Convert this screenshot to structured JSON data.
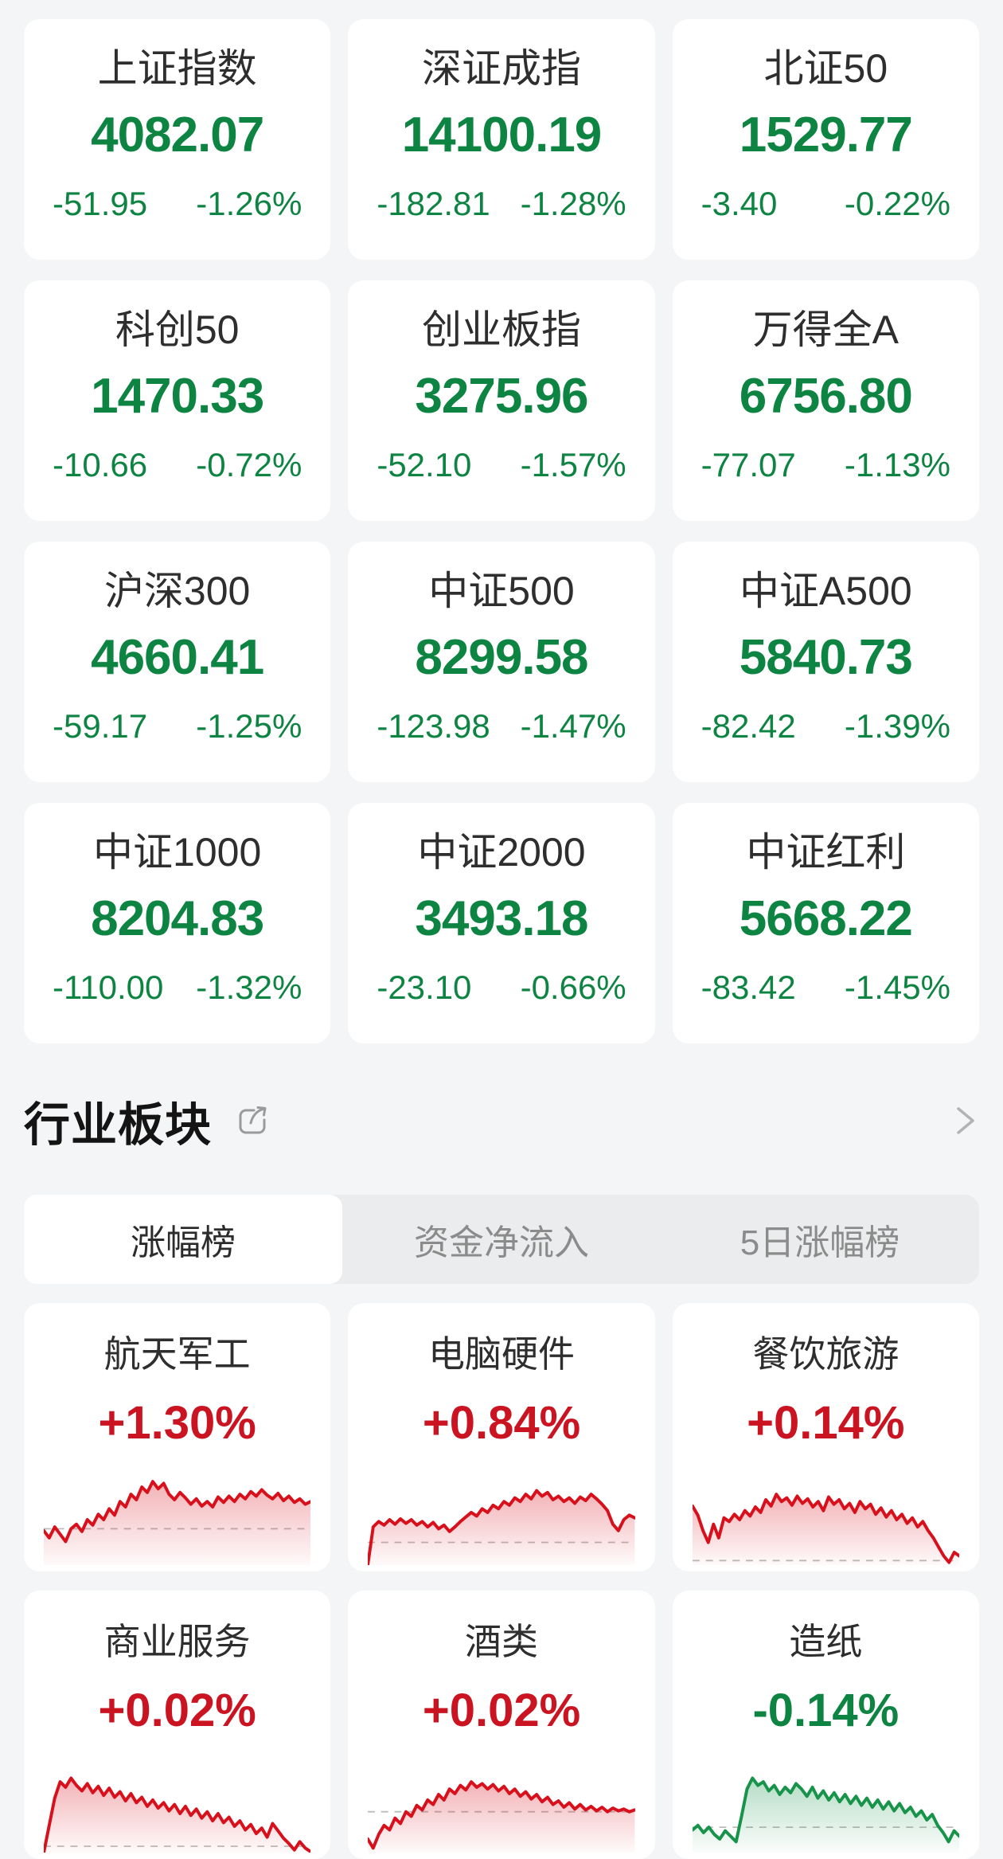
{
  "colors": {
    "page_bg": "#f4f5f6",
    "card_bg": "#ffffff",
    "text_green": "#0e8443",
    "text_red": "#cb1421",
    "chart_red": "#d8101c",
    "chart_green": "#18944a",
    "baseline_gray": "#bcbcbc",
    "tab_bg": "#ebeced",
    "tab_inactive": "#8b8b8b"
  },
  "icons": {
    "share": "share-icon",
    "chevron_right": "chevron-right-icon"
  },
  "index_cards": [
    {
      "name": "上证指数",
      "value": "4082.07",
      "change": "-51.95",
      "change_pct": "-1.26%"
    },
    {
      "name": "深证成指",
      "value": "14100.19",
      "change": "-182.81",
      "change_pct": "-1.28%"
    },
    {
      "name": "北证50",
      "value": "1529.77",
      "change": "-3.40",
      "change_pct": "-0.22%"
    },
    {
      "name": "科创50",
      "value": "1470.33",
      "change": "-10.66",
      "change_pct": "-0.72%"
    },
    {
      "name": "创业板指",
      "value": "3275.96",
      "change": "-52.10",
      "change_pct": "-1.57%"
    },
    {
      "name": "万得全A",
      "value": "6756.80",
      "change": "-77.07",
      "change_pct": "-1.13%"
    },
    {
      "name": "沪深300",
      "value": "4660.41",
      "change": "-59.17",
      "change_pct": "-1.25%"
    },
    {
      "name": "中证500",
      "value": "8299.58",
      "change": "-123.98",
      "change_pct": "-1.47%"
    },
    {
      "name": "中证A500",
      "value": "5840.73",
      "change": "-82.42",
      "change_pct": "-1.39%"
    },
    {
      "name": "中证1000",
      "value": "8204.83",
      "change": "-110.00",
      "change_pct": "-1.32%"
    },
    {
      "name": "中证2000",
      "value": "3493.18",
      "change": "-23.10",
      "change_pct": "-0.66%"
    },
    {
      "name": "中证红利",
      "value": "5668.22",
      "change": "-83.42",
      "change_pct": "-1.45%"
    }
  ],
  "sector_section": {
    "title": "行业板块",
    "tabs": [
      {
        "label": "涨幅榜",
        "active": true
      },
      {
        "label": "资金净流入",
        "active": false
      },
      {
        "label": "5日涨幅榜",
        "active": false
      }
    ],
    "sectors": [
      {
        "name": "航天军工",
        "change": "+1.30%",
        "direction": "up",
        "baseline": 60,
        "points": [
          62,
          70,
          58,
          66,
          74,
          60,
          55,
          63,
          50,
          56,
          44,
          50,
          38,
          45,
          30,
          36,
          22,
          28,
          14,
          20,
          8,
          16,
          10,
          22,
          28,
          20,
          26,
          33,
          27,
          35,
          30,
          36,
          25,
          31,
          24,
          30,
          22,
          27,
          19,
          24,
          17,
          23,
          27,
          21,
          29,
          24,
          31,
          27,
          33,
          30
        ]
      },
      {
        "name": "电脑硬件",
        "change": "+0.84%",
        "direction": "up",
        "baseline": 75,
        "points": [
          100,
          58,
          52,
          56,
          50,
          55,
          49,
          54,
          50,
          56,
          52,
          58,
          53,
          60,
          56,
          63,
          58,
          52,
          47,
          42,
          46,
          38,
          42,
          34,
          38,
          30,
          34,
          26,
          30,
          22,
          27,
          18,
          24,
          20,
          28,
          24,
          30,
          26,
          32,
          25,
          29,
          22,
          27,
          33,
          40,
          55,
          62,
          50,
          45,
          48
        ]
      },
      {
        "name": "餐饮旅游",
        "change": "+0.14%",
        "direction": "up",
        "baseline": 95,
        "points": [
          35,
          45,
          62,
          75,
          55,
          70,
          48,
          52,
          44,
          50,
          40,
          46,
          36,
          42,
          28,
          35,
          22,
          30,
          26,
          34,
          24,
          32,
          27,
          36,
          30,
          40,
          25,
          33,
          28,
          38,
          32,
          42,
          30,
          38,
          33,
          44,
          37,
          47,
          40,
          50,
          44,
          54,
          48,
          58,
          52,
          62,
          70,
          80,
          90,
          97,
          86,
          90
        ]
      },
      {
        "name": "商业服务",
        "change": "+0.02%",
        "direction": "up",
        "baseline": 93,
        "points": [
          100,
          70,
          40,
          22,
          28,
          18,
          26,
          32,
          24,
          34,
          27,
          37,
          29,
          39,
          33,
          43,
          35,
          45,
          39,
          49,
          42,
          51,
          45,
          54,
          47,
          57,
          49,
          59,
          52,
          62,
          55,
          65,
          57,
          67,
          61,
          71,
          65,
          75,
          69,
          79,
          73,
          83,
          68,
          76,
          84,
          90,
          97,
          88,
          95,
          99
        ]
      },
      {
        "name": "酒类",
        "change": "+0.02%",
        "direction": "up",
        "baseline": 55,
        "points": [
          85,
          95,
          80,
          70,
          75,
          62,
          68,
          55,
          60,
          48,
          53,
          42,
          47,
          36,
          42,
          30,
          35,
          26,
          31,
          22,
          28,
          24,
          30,
          25,
          32,
          27,
          35,
          30,
          38,
          33,
          41,
          36,
          44,
          39,
          47,
          43,
          50,
          45,
          52,
          47,
          53,
          49,
          54,
          50,
          55,
          51,
          54,
          52,
          55,
          53
        ]
      },
      {
        "name": "造纸",
        "change": "-0.14%",
        "direction": "down",
        "baseline": 72,
        "points": [
          75,
          70,
          78,
          72,
          80,
          85,
          76,
          82,
          88,
          60,
          30,
          18,
          26,
          22,
          32,
          26,
          36,
          28,
          34,
          24,
          30,
          38,
          28,
          40,
          32,
          42,
          34,
          44,
          36,
          46,
          38,
          48,
          40,
          50,
          42,
          52,
          44,
          54,
          46,
          56,
          50,
          60,
          54,
          64,
          58,
          70,
          78,
          88,
          76,
          82
        ]
      }
    ]
  }
}
